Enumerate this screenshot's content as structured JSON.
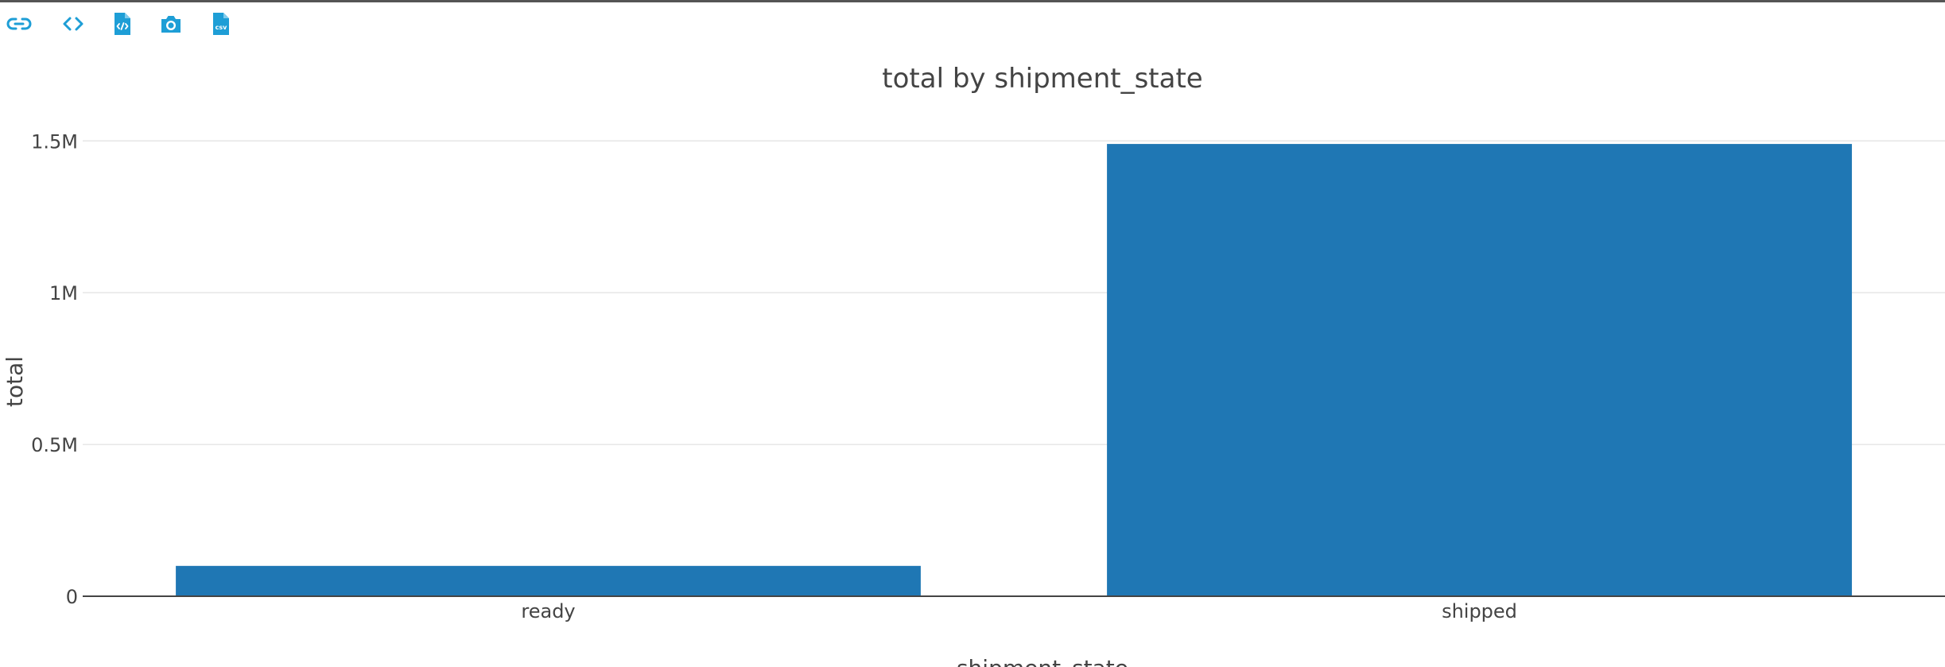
{
  "toolbar": {
    "items": [
      {
        "icon": "link-icon"
      },
      {
        "icon": "code-icon"
      },
      {
        "icon": "html-file-icon"
      },
      {
        "icon": "camera-icon"
      },
      {
        "icon": "csv-file-icon",
        "badge": "csv"
      }
    ],
    "accent_color": "#1e9ed6"
  },
  "chart_data": {
    "type": "bar",
    "title": "total by shipment_state",
    "xlabel": "shipment_state",
    "ylabel": "total",
    "categories": [
      "ready",
      "shipped"
    ],
    "values": [
      100000,
      1490000
    ],
    "ylim": [
      0,
      1650000
    ],
    "yticks": [
      0,
      500000,
      1000000,
      1500000
    ],
    "ytick_labels": [
      "0",
      "0.5M",
      "1M",
      "1.5M"
    ],
    "grid": true,
    "bar_color": "#1f77b4"
  }
}
